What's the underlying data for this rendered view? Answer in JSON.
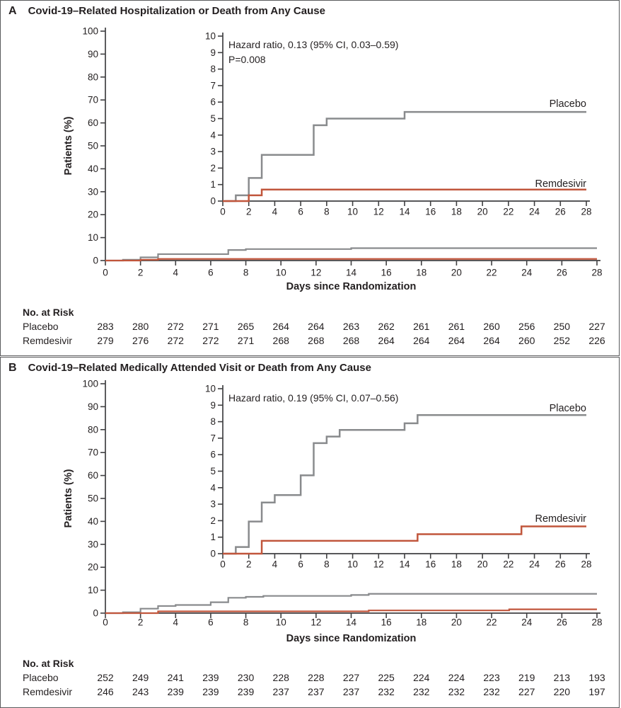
{
  "colors": {
    "placebo": "#898b8d",
    "remdesivir": "#c1563c",
    "text": "#231f20",
    "axis": "#404042",
    "panel_border": "#5a5b5d"
  },
  "chart_data": [
    {
      "type": "line",
      "subtype": "kaplan-meier-step",
      "panel_label": "A",
      "title": "Covid-19–Related Hospitalization or Death from Any Cause",
      "annotation": [
        "Hazard ratio, 0.13 (95% CI, 0.03–0.59)",
        "P=0.008"
      ],
      "xlabel": "Days since Randomization",
      "ylabel": "Patients (%)",
      "xlim": [
        0,
        28
      ],
      "xtick_step": 2,
      "main_ylim": [
        0,
        100
      ],
      "main_ytick_step": 10,
      "inset_ylim": [
        0,
        10
      ],
      "inset_ytick_step": 1,
      "legend_position": "end-of-line-right",
      "grid": false,
      "series": [
        {
          "name": "Placebo",
          "color_key": "placebo",
          "steps": [
            [
              0,
              0
            ],
            [
              1,
              0.35
            ],
            [
              2,
              1.4
            ],
            [
              3,
              2.8
            ],
            [
              7,
              4.6
            ],
            [
              8,
              5.0
            ],
            [
              14,
              5.4
            ]
          ],
          "x_end": 28,
          "final_value": 5.4
        },
        {
          "name": "Remdesivir",
          "color_key": "remdesivir",
          "steps": [
            [
              0,
              0
            ],
            [
              2,
              0.35
            ],
            [
              3,
              0.7
            ]
          ],
          "x_end": 28,
          "final_value": 0.7
        }
      ],
      "risk_table": {
        "header": "No. at Risk",
        "days": [
          0,
          2,
          4,
          6,
          8,
          10,
          12,
          14,
          16,
          18,
          20,
          22,
          24,
          26,
          28
        ],
        "rows": [
          {
            "name": "Placebo",
            "values": [
              283,
              280,
              272,
              271,
              265,
              264,
              264,
              263,
              262,
              261,
              261,
              260,
              256,
              250,
              227
            ]
          },
          {
            "name": "Remdesivir",
            "values": [
              279,
              276,
              272,
              272,
              271,
              268,
              268,
              268,
              264,
              264,
              264,
              264,
              260,
              252,
              226
            ]
          }
        ]
      }
    },
    {
      "type": "line",
      "subtype": "kaplan-meier-step",
      "panel_label": "B",
      "title": "Covid-19–Related Medically Attended Visit or Death from Any Cause",
      "annotation": [
        "Hazard ratio, 0.19 (95% CI, 0.07–0.56)"
      ],
      "xlabel": "Days since Randomization",
      "ylabel": "Patients (%)",
      "xlim": [
        0,
        28
      ],
      "xtick_step": 2,
      "main_ylim": [
        0,
        100
      ],
      "main_ytick_step": 10,
      "inset_ylim": [
        0,
        10
      ],
      "inset_ytick_step": 1,
      "legend_position": "end-of-line-right",
      "grid": false,
      "series": [
        {
          "name": "Placebo",
          "color_key": "placebo",
          "steps": [
            [
              0,
              0
            ],
            [
              1,
              0.4
            ],
            [
              2,
              1.95
            ],
            [
              3,
              3.1
            ],
            [
              4,
              3.55
            ],
            [
              6,
              4.75
            ],
            [
              7,
              6.7
            ],
            [
              8,
              7.1
            ],
            [
              9,
              7.5
            ],
            [
              14,
              7.9
            ],
            [
              15,
              8.4
            ]
          ],
          "x_end": 28,
          "final_value": 8.4
        },
        {
          "name": "Remdesivir",
          "color_key": "remdesivir",
          "steps": [
            [
              0,
              0
            ],
            [
              3,
              0.78
            ],
            [
              15,
              1.18
            ],
            [
              23,
              1.65
            ]
          ],
          "x_end": 28,
          "final_value": 1.65
        }
      ],
      "risk_table": {
        "header": "No. at Risk",
        "days": [
          0,
          2,
          4,
          6,
          8,
          10,
          12,
          14,
          16,
          18,
          20,
          22,
          24,
          26,
          28
        ],
        "rows": [
          {
            "name": "Placebo",
            "values": [
              252,
              249,
              241,
              239,
              230,
              228,
              228,
              227,
              225,
              224,
              224,
              223,
              219,
              213,
              193
            ]
          },
          {
            "name": "Remdesivir",
            "values": [
              246,
              243,
              239,
              239,
              239,
              237,
              237,
              237,
              232,
              232,
              232,
              232,
              227,
              220,
              197
            ]
          }
        ]
      }
    }
  ]
}
